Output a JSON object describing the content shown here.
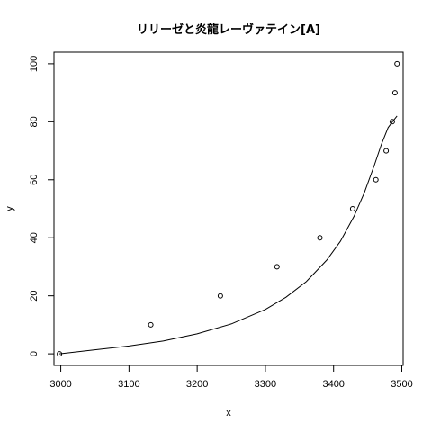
{
  "chart_data": {
    "type": "scatter",
    "title": "リリーゼと炎龍レーヴァテイン[A]",
    "xlabel": "x",
    "ylabel": "y",
    "xlim": [
      2990,
      3502
    ],
    "ylim": [
      -4,
      104
    ],
    "xticks": [
      3000,
      3100,
      3200,
      3300,
      3400,
      3500
    ],
    "yticks": [
      0,
      20,
      40,
      60,
      80,
      100
    ],
    "xtick_labels": [
      "3000",
      "3100",
      "3200",
      "3300",
      "3400",
      "3500"
    ],
    "ytick_labels": [
      "0",
      "20",
      "40",
      "60",
      "80",
      "100"
    ],
    "points": {
      "x": [
        2998,
        3132,
        3234,
        3317,
        3380,
        3428,
        3462,
        3477,
        3486,
        3490,
        3493
      ],
      "y": [
        0,
        10,
        20,
        30,
        40,
        50,
        60,
        70,
        80,
        90,
        100
      ]
    },
    "fit_curve": {
      "x": [
        2998,
        3050,
        3100,
        3150,
        3200,
        3250,
        3300,
        3330,
        3360,
        3390,
        3410,
        3430,
        3445,
        3460,
        3470,
        3480,
        3487,
        3493
      ],
      "y": [
        0,
        1.4,
        2.7,
        4.4,
        6.9,
        10.3,
        15.3,
        19.5,
        24.9,
        32.3,
        38.8,
        47.4,
        55.5,
        65.2,
        72.2,
        78.0,
        80.2,
        82.0
      ]
    },
    "grid": false,
    "legend": "none"
  }
}
